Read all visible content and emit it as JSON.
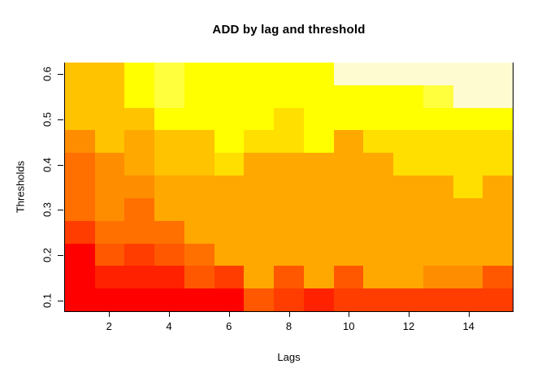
{
  "title": "ADD by lag and threshold",
  "x_axis": {
    "label": "Lags"
  },
  "y_axis": {
    "label": "Thresholds"
  },
  "chart_data": {
    "type": "heatmap",
    "title": "ADD by lag and threshold",
    "xlabel": "Lags",
    "ylabel": "Thresholds",
    "x_categories": [
      1,
      2,
      3,
      4,
      5,
      6,
      7,
      8,
      9,
      10,
      11,
      12,
      13,
      14,
      15
    ],
    "y_categories": [
      0.1,
      0.15,
      0.2,
      0.25,
      0.3,
      0.35,
      0.4,
      0.45,
      0.5,
      0.55,
      0.6
    ],
    "x_tick_labels": [
      2,
      4,
      6,
      8,
      10,
      12,
      14
    ],
    "y_tick_labels": [
      0.1,
      0.2,
      0.3,
      0.4,
      0.5,
      0.6
    ],
    "x_range": [
      0.5,
      15.5
    ],
    "y_range": [
      0.075,
      0.625
    ],
    "grid": "off",
    "legend": "none",
    "palette": {
      "R1": "#FF0000",
      "R2": "#FF2100",
      "R3": "#FF3D00",
      "R4": "#FF5800",
      "O1": "#FF7000",
      "O2": "#FF8D00",
      "O3": "#FFA800",
      "A1": "#FFC300",
      "G1": "#FFDF00",
      "Y1": "#FFFF00",
      "Y2": "#FFFF3D",
      "C1": "#FFFBD1"
    },
    "row_labels_top_to_bottom": [
      0.6,
      0.55,
      0.5,
      0.45,
      0.4,
      0.35,
      0.3,
      0.25,
      0.2,
      0.15,
      0.1
    ],
    "cell_colors": [
      [
        "A1",
        "A1",
        "Y1",
        "Y2",
        "Y1",
        "Y1",
        "Y1",
        "Y1",
        "Y1",
        "C1",
        "C1",
        "C1",
        "C1",
        "C1",
        "C1"
      ],
      [
        "A1",
        "A1",
        "Y1",
        "Y2",
        "Y1",
        "Y1",
        "Y1",
        "Y1",
        "Y1",
        "Y1",
        "Y1",
        "Y1",
        "Y2",
        "C1",
        "C1"
      ],
      [
        "A1",
        "A1",
        "A1",
        "Y1",
        "Y1",
        "Y1",
        "Y1",
        "G1",
        "Y1",
        "Y1",
        "Y1",
        "Y1",
        "Y1",
        "Y1",
        "Y1"
      ],
      [
        "O2",
        "A1",
        "O3",
        "A1",
        "A1",
        "Y1",
        "G1",
        "G1",
        "Y1",
        "O3",
        "G1",
        "G1",
        "G1",
        "G1",
        "G1"
      ],
      [
        "O1",
        "O2",
        "O3",
        "A1",
        "A1",
        "G1",
        "O3",
        "O3",
        "O3",
        "O3",
        "O3",
        "G1",
        "G1",
        "G1",
        "G1"
      ],
      [
        "O1",
        "O2",
        "O2",
        "O3",
        "O3",
        "O3",
        "O3",
        "O3",
        "O3",
        "O3",
        "O3",
        "O3",
        "O3",
        "G1",
        "O3"
      ],
      [
        "O1",
        "O2",
        "O1",
        "O3",
        "O3",
        "O3",
        "O3",
        "O3",
        "O3",
        "O3",
        "O3",
        "O3",
        "O3",
        "O3",
        "O3"
      ],
      [
        "R3",
        "O1",
        "O1",
        "O1",
        "O3",
        "O3",
        "O3",
        "O3",
        "O3",
        "O3",
        "O3",
        "O3",
        "O3",
        "O3",
        "O3"
      ],
      [
        "R1",
        "R4",
        "R3",
        "R4",
        "O1",
        "O3",
        "O3",
        "O3",
        "O3",
        "O3",
        "O3",
        "O3",
        "O3",
        "O3",
        "O3"
      ],
      [
        "R1",
        "R2",
        "R2",
        "R2",
        "R4",
        "R3",
        "O3",
        "R4",
        "O3",
        "R4",
        "O3",
        "O3",
        "O2",
        "O2",
        "R4"
      ],
      [
        "R1",
        "R1",
        "R1",
        "R1",
        "R1",
        "R1",
        "R4",
        "R3",
        "R2",
        "R3",
        "R3",
        "R3",
        "R3",
        "R3",
        "R3"
      ]
    ]
  }
}
